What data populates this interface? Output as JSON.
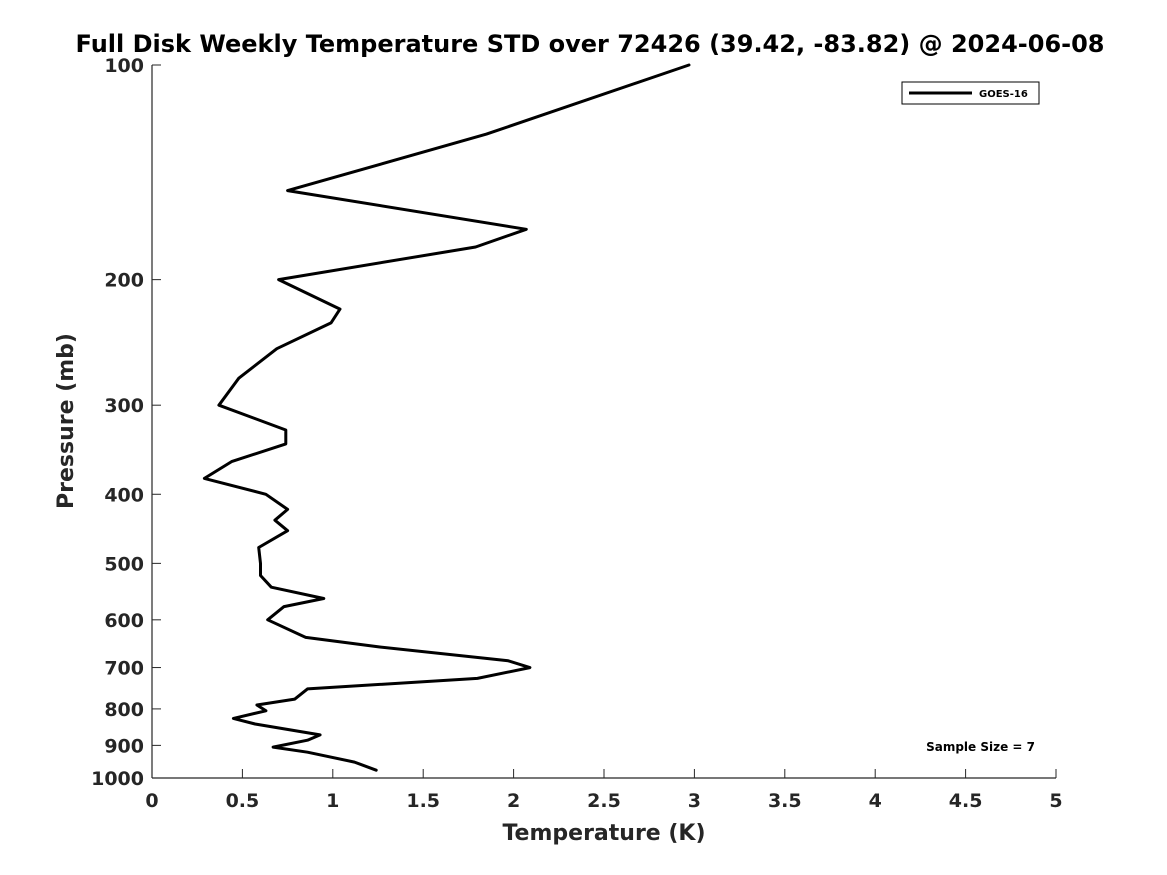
{
  "chart_data": {
    "type": "line",
    "title": "Full Disk Weekly Temperature STD over 72426 (39.42, -83.82) @ 2024-06-08",
    "xlabel": "Temperature (K)",
    "ylabel": "Pressure (mb)",
    "xlim": [
      0,
      5
    ],
    "ylim": [
      100,
      1000
    ],
    "y_scale": "log",
    "y_reversed": true,
    "x_ticks": [
      0,
      0.5,
      1,
      1.5,
      2,
      2.5,
      3,
      3.5,
      4,
      4.5,
      5
    ],
    "x_tick_labels": [
      "0",
      "0.5",
      "1",
      "1.5",
      "2",
      "2.5",
      "3",
      "3.5",
      "4",
      "4.5",
      "5"
    ],
    "y_ticks": [
      100,
      200,
      300,
      400,
      500,
      600,
      700,
      800,
      900,
      1000
    ],
    "y_tick_labels": [
      "100",
      "200",
      "300",
      "400",
      "500",
      "600",
      "700",
      "800",
      "900",
      "1000"
    ],
    "grid": false,
    "legend_position": "top-right",
    "annotation": "Sample Size = 7",
    "series": [
      {
        "name": "GOES-16",
        "color": "#000000",
        "points": [
          [
            2.97,
            100
          ],
          [
            1.85,
            125
          ],
          [
            0.75,
            150
          ],
          [
            2.07,
            170
          ],
          [
            1.79,
            180
          ],
          [
            0.7,
            200
          ],
          [
            1.04,
            220
          ],
          [
            0.99,
            230
          ],
          [
            0.69,
            250
          ],
          [
            0.48,
            275
          ],
          [
            0.37,
            300
          ],
          [
            0.74,
            325
          ],
          [
            0.74,
            340
          ],
          [
            0.44,
            360
          ],
          [
            0.29,
            380
          ],
          [
            0.63,
            400
          ],
          [
            0.75,
            420
          ],
          [
            0.68,
            435
          ],
          [
            0.75,
            450
          ],
          [
            0.59,
            475
          ],
          [
            0.6,
            500
          ],
          [
            0.6,
            520
          ],
          [
            0.66,
            540
          ],
          [
            0.95,
            560
          ],
          [
            0.73,
            575
          ],
          [
            0.64,
            600
          ],
          [
            0.85,
            635
          ],
          [
            1.26,
            655
          ],
          [
            1.97,
            685
          ],
          [
            2.09,
            700
          ],
          [
            1.8,
            725
          ],
          [
            0.86,
            750
          ],
          [
            0.79,
            775
          ],
          [
            0.58,
            790
          ],
          [
            0.63,
            805
          ],
          [
            0.45,
            825
          ],
          [
            0.57,
            840
          ],
          [
            0.93,
            870
          ],
          [
            0.86,
            885
          ],
          [
            0.67,
            905
          ],
          [
            0.86,
            920
          ],
          [
            1.12,
            950
          ],
          [
            1.24,
            975
          ]
        ]
      }
    ]
  }
}
